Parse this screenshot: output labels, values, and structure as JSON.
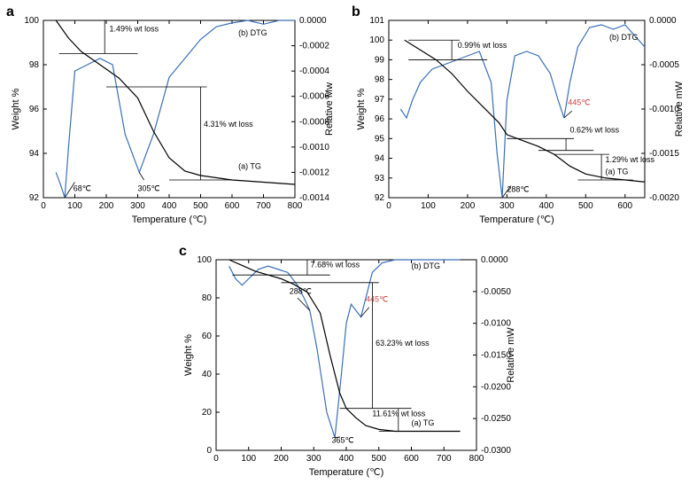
{
  "panels": {
    "a": {
      "label": "a",
      "xlabel": "Temperature (℃)",
      "ylabel_left": "Weight %",
      "ylabel_right": "Relative Mw",
      "xlim": [
        0,
        800
      ],
      "xticks": [
        0,
        100,
        200,
        300,
        400,
        500,
        600,
        700,
        800
      ],
      "ylim_left": [
        92,
        100
      ],
      "yticks_left": [
        92,
        94,
        96,
        98,
        100
      ],
      "ylim_right": [
        -0.0014,
        0.0
      ],
      "yticks_right": [
        -0.0014,
        -0.0012,
        -0.001,
        -0.0008,
        -0.0006,
        -0.0004,
        -0.0002,
        0.0
      ],
      "tg_curve_label": "(a) TG",
      "dtg_curve_label": "(b) DTG",
      "tg_color": "#000000",
      "dtg_color": "#3a6fb7",
      "background": "#ffffff",
      "annotations": [
        {
          "text": "1.49% wt loss"
        },
        {
          "text": "4.31% wt loss"
        },
        {
          "text": "68℃"
        },
        {
          "text": "305℃"
        }
      ],
      "tg_points": [
        [
          40,
          100
        ],
        [
          80,
          99.2
        ],
        [
          120,
          98.6
        ],
        [
          180,
          98.0
        ],
        [
          240,
          97.4
        ],
        [
          300,
          96.5
        ],
        [
          350,
          95.0
        ],
        [
          400,
          93.8
        ],
        [
          450,
          93.2
        ],
        [
          500,
          93.0
        ],
        [
          600,
          92.8
        ],
        [
          700,
          92.7
        ],
        [
          800,
          92.6
        ]
      ],
      "dtg_points": [
        [
          40,
          -0.0012
        ],
        [
          55,
          -0.0013
        ],
        [
          68,
          -0.0014
        ],
        [
          80,
          -0.001
        ],
        [
          100,
          -0.0004
        ],
        [
          140,
          -0.00035
        ],
        [
          180,
          -0.0003
        ],
        [
          220,
          -0.00035
        ],
        [
          260,
          -0.0009
        ],
        [
          305,
          -0.0012
        ],
        [
          350,
          -0.0009
        ],
        [
          400,
          -0.00045
        ],
        [
          450,
          -0.0003
        ],
        [
          500,
          -0.00015
        ],
        [
          550,
          -5e-05
        ],
        [
          600,
          -2e-05
        ],
        [
          650,
          0
        ],
        [
          700,
          -3e-05
        ],
        [
          750,
          0
        ],
        [
          800,
          0
        ]
      ]
    },
    "b": {
      "label": "b",
      "xlabel": "Temperature (℃)",
      "ylabel_left": "Weight %",
      "ylabel_right": "Relative mW",
      "xlim": [
        0,
        650
      ],
      "xticks": [
        0,
        100,
        200,
        300,
        400,
        500,
        600
      ],
      "ylim_left": [
        92,
        101
      ],
      "yticks_left": [
        92,
        93,
        94,
        95,
        96,
        97,
        98,
        99,
        100,
        101
      ],
      "ylim_right": [
        -0.002,
        0.0
      ],
      "yticks_right": [
        -0.002,
        -0.0015,
        -0.001,
        -0.0005,
        0.0
      ],
      "tg_curve_label": "(a) TG",
      "dtg_curve_label": "(b) DTG",
      "tg_color": "#000000",
      "dtg_color": "#3a6fb7",
      "background": "#ffffff",
      "annotations": [
        {
          "text": "0.99% wt loss"
        },
        {
          "text": "0.62% wt loss"
        },
        {
          "text": "1.29% wt loss"
        },
        {
          "text": "288℃"
        },
        {
          "text": "445℃",
          "red": true
        }
      ],
      "tg_points": [
        [
          40,
          100
        ],
        [
          80,
          99.5
        ],
        [
          120,
          99.0
        ],
        [
          160,
          98.3
        ],
        [
          200,
          97.4
        ],
        [
          240,
          96.6
        ],
        [
          280,
          95.8
        ],
        [
          300,
          95.2
        ],
        [
          340,
          94.9
        ],
        [
          380,
          94.6
        ],
        [
          420,
          94.2
        ],
        [
          460,
          93.6
        ],
        [
          500,
          93.2
        ],
        [
          550,
          93.0
        ],
        [
          600,
          92.9
        ],
        [
          650,
          92.8
        ]
      ],
      "dtg_points": [
        [
          30,
          -0.001
        ],
        [
          45,
          -0.0011
        ],
        [
          60,
          -0.0009
        ],
        [
          80,
          -0.0007
        ],
        [
          110,
          -0.00055
        ],
        [
          140,
          -0.0005
        ],
        [
          170,
          -0.00045
        ],
        [
          200,
          -0.0004
        ],
        [
          230,
          -0.00035
        ],
        [
          260,
          -0.0007
        ],
        [
          275,
          -0.0015
        ],
        [
          288,
          -0.002
        ],
        [
          300,
          -0.0009
        ],
        [
          320,
          -0.0004
        ],
        [
          350,
          -0.00035
        ],
        [
          380,
          -0.0004
        ],
        [
          410,
          -0.0006
        ],
        [
          430,
          -0.0009
        ],
        [
          445,
          -0.0011
        ],
        [
          460,
          -0.0007
        ],
        [
          480,
          -0.0003
        ],
        [
          510,
          -8e-05
        ],
        [
          540,
          -5e-05
        ],
        [
          570,
          -0.0001
        ],
        [
          600,
          -5e-05
        ],
        [
          630,
          -0.0002
        ],
        [
          650,
          -0.0003
        ]
      ]
    },
    "c": {
      "label": "c",
      "xlabel": "Temperature (℃)",
      "ylabel_left": "Weight %",
      "ylabel_right": "Relative mW",
      "xlim": [
        0,
        800
      ],
      "xticks": [
        0,
        100,
        200,
        300,
        400,
        500,
        600,
        700,
        800
      ],
      "ylim_left": [
        0,
        100
      ],
      "yticks_left": [
        0,
        20,
        40,
        60,
        80,
        100
      ],
      "ylim_right": [
        -0.03,
        0.0
      ],
      "yticks_right": [
        -0.03,
        -0.025,
        -0.02,
        -0.015,
        -0.01,
        -0.005,
        0.0
      ],
      "tg_curve_label": "(a) TG",
      "dtg_curve_label": "(b) DTG",
      "tg_color": "#000000",
      "dtg_color": "#3a6fb7",
      "background": "#ffffff",
      "annotations": [
        {
          "text": "7.68% wt loss"
        },
        {
          "text": "63.23% wt loss"
        },
        {
          "text": "11.61% wt loss"
        },
        {
          "text": "288℃"
        },
        {
          "text": "365℃"
        },
        {
          "text": "445℃",
          "red": true
        }
      ],
      "tg_points": [
        [
          40,
          100
        ],
        [
          80,
          97
        ],
        [
          120,
          94
        ],
        [
          160,
          92
        ],
        [
          200,
          90
        ],
        [
          240,
          87
        ],
        [
          280,
          83
        ],
        [
          320,
          72
        ],
        [
          350,
          50
        ],
        [
          380,
          30
        ],
        [
          400,
          22
        ],
        [
          430,
          17
        ],
        [
          460,
          13
        ],
        [
          500,
          11
        ],
        [
          550,
          10
        ],
        [
          600,
          10
        ],
        [
          650,
          10
        ],
        [
          700,
          10
        ],
        [
          750,
          10
        ]
      ],
      "dtg_points": [
        [
          40,
          -0.001
        ],
        [
          60,
          -0.003
        ],
        [
          80,
          -0.004
        ],
        [
          100,
          -0.003
        ],
        [
          130,
          -0.0015
        ],
        [
          160,
          -0.001
        ],
        [
          190,
          -0.0015
        ],
        [
          220,
          -0.002
        ],
        [
          250,
          -0.004
        ],
        [
          270,
          -0.006
        ],
        [
          288,
          -0.008
        ],
        [
          310,
          -0.014
        ],
        [
          340,
          -0.024
        ],
        [
          365,
          -0.028
        ],
        [
          385,
          -0.018
        ],
        [
          400,
          -0.01
        ],
        [
          415,
          -0.007
        ],
        [
          430,
          -0.008
        ],
        [
          445,
          -0.009
        ],
        [
          460,
          -0.006
        ],
        [
          480,
          -0.002
        ],
        [
          510,
          -0.0005
        ],
        [
          550,
          0
        ],
        [
          600,
          0
        ],
        [
          650,
          0
        ],
        [
          700,
          0
        ],
        [
          750,
          0
        ]
      ]
    }
  }
}
